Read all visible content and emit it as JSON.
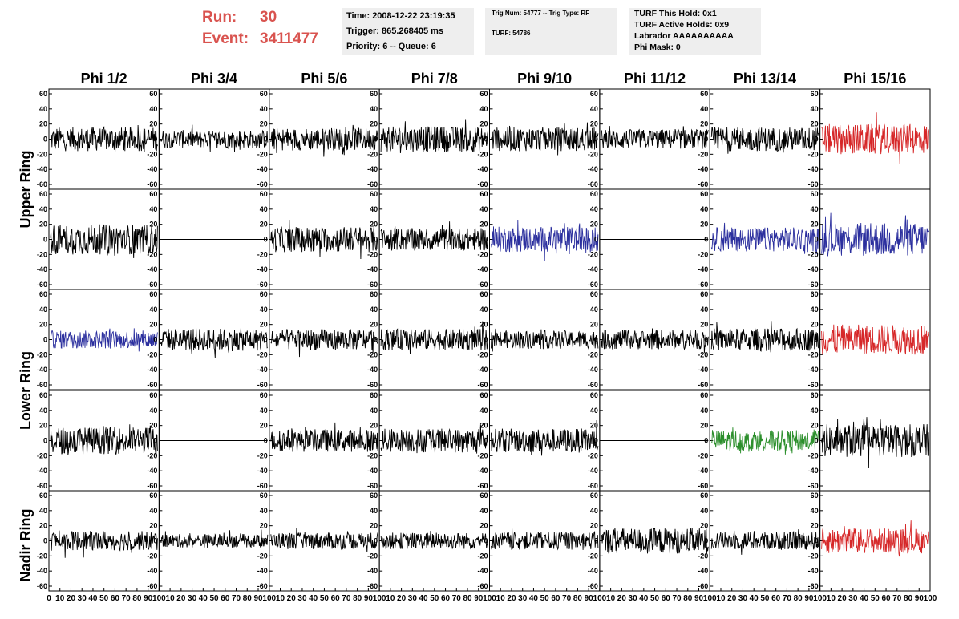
{
  "header": {
    "run_label": "Run:",
    "run_value": "30",
    "event_label": "Event:",
    "event_value": "3411477",
    "time": "Time: 2008-12-22 23:19:35",
    "trigger": "Trigger: 865.268405 ms",
    "priority": "Priority: 6 -- Queue: 6",
    "trig_num": "Trig Num: 54777 -- Trig Type: RF",
    "turf": "TURF: 54786",
    "turf_this_hold": "TURF This Hold: 0x1",
    "turf_active_holds": "TURF Active Holds: 0x9",
    "labrador": "Labrador AAAAAAAAAA",
    "phi_mask": "Phi Mask: 0"
  },
  "colors": {
    "black": "#000000",
    "red": "#d62728",
    "blue": "#2b2f9e",
    "green": "#2c8f2c",
    "header_red": "#d9534f",
    "box_grey": "#eeeeee"
  },
  "chart_data": {
    "type": "line",
    "grid": false,
    "columns": [
      "Phi 1/2",
      "Phi 3/4",
      "Phi 5/6",
      "Phi 7/8",
      "Phi 9/10",
      "Phi 11/12",
      "Phi 13/14",
      "Phi 15/16"
    ],
    "ring_labels": [
      "Upper Ring",
      "Lower Ring",
      "Nadir Ring"
    ],
    "ylim": [
      -60,
      60
    ],
    "y_ticks": [
      60,
      40,
      20,
      0,
      -20,
      -40,
      -60
    ],
    "xlim": [
      0,
      100
    ],
    "x_tick_labels": [
      "0",
      "10",
      "20",
      "30",
      "40",
      "50",
      "60",
      "70",
      "80",
      "90",
      "100"
    ],
    "panel_rows": [
      {
        "traces": [
          {
            "color": "black",
            "amp": 16,
            "flat": false
          },
          {
            "color": "black",
            "amp": 12,
            "flat": false
          },
          {
            "color": "black",
            "amp": 15,
            "flat": false
          },
          {
            "color": "black",
            "amp": 17,
            "flat": false
          },
          {
            "color": "black",
            "amp": 16,
            "flat": false
          },
          {
            "color": "black",
            "amp": 13,
            "flat": false
          },
          {
            "color": "black",
            "amp": 16,
            "flat": false
          },
          {
            "color": "red",
            "amp": 20,
            "flat": false
          }
        ]
      },
      {
        "traces": [
          {
            "color": "black",
            "amp": 20,
            "flat": false
          },
          {
            "color": "black",
            "amp": 0,
            "flat": true
          },
          {
            "color": "black",
            "amp": 17,
            "flat": false
          },
          {
            "color": "black",
            "amp": 15,
            "flat": false
          },
          {
            "color": "blue",
            "amp": 17,
            "flat": false
          },
          {
            "color": "black",
            "amp": 0,
            "flat": true
          },
          {
            "color": "blue",
            "amp": 16,
            "flat": false
          },
          {
            "color": "blue",
            "amp": 22,
            "flat": false
          }
        ]
      },
      {
        "traces": [
          {
            "color": "blue",
            "amp": 12,
            "flat": false
          },
          {
            "color": "black",
            "amp": 15,
            "flat": false
          },
          {
            "color": "black",
            "amp": 14,
            "flat": false
          },
          {
            "color": "black",
            "amp": 14,
            "flat": false
          },
          {
            "color": "black",
            "amp": 12,
            "flat": false
          },
          {
            "color": "black",
            "amp": 13,
            "flat": false
          },
          {
            "color": "black",
            "amp": 15,
            "flat": false
          },
          {
            "color": "red",
            "amp": 20,
            "flat": false
          }
        ]
      },
      {
        "traces": [
          {
            "color": "black",
            "amp": 18,
            "flat": false
          },
          {
            "color": "black",
            "amp": 0,
            "flat": true
          },
          {
            "color": "black",
            "amp": 15,
            "flat": false
          },
          {
            "color": "black",
            "amp": 16,
            "flat": false
          },
          {
            "color": "black",
            "amp": 16,
            "flat": false
          },
          {
            "color": "black",
            "amp": 0,
            "flat": true
          },
          {
            "color": "green",
            "amp": 14,
            "flat": false
          },
          {
            "color": "black",
            "amp": 22,
            "flat": false
          }
        ]
      },
      {
        "traces": [
          {
            "color": "black",
            "amp": 13,
            "flat": false
          },
          {
            "color": "black",
            "amp": 9,
            "flat": false
          },
          {
            "color": "black",
            "amp": 11,
            "flat": false
          },
          {
            "color": "black",
            "amp": 11,
            "flat": false
          },
          {
            "color": "black",
            "amp": 12,
            "flat": false
          },
          {
            "color": "black",
            "amp": 17,
            "flat": false
          },
          {
            "color": "black",
            "amp": 12,
            "flat": false
          },
          {
            "color": "red",
            "amp": 17,
            "flat": false
          }
        ]
      }
    ]
  }
}
